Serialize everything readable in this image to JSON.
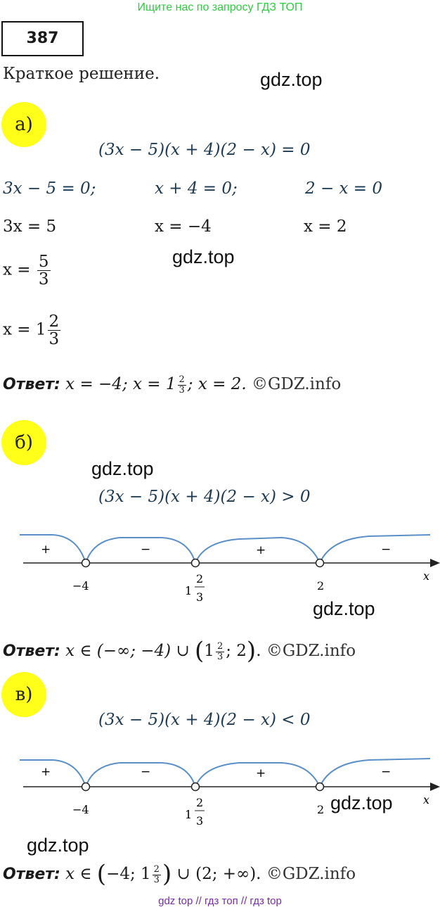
{
  "banner_top": "Ищите нас по запросу ГДЗ ТОП",
  "problem_number": "387",
  "subtitle": "Краткое решение.",
  "watermark": "gdz.top",
  "part_a": {
    "label": "а)",
    "equation": "(3x − 5)(x + 4)(2 − x) = 0",
    "col1": [
      "3x − 5 = 0;",
      "3x = 5"
    ],
    "col2": [
      "x + 4 = 0;",
      "x = −4"
    ],
    "col3": [
      "2 − x = 0",
      "x = 2"
    ],
    "x_prefix": "x =",
    "frac_5_3": {
      "num": "5",
      "den": "3"
    },
    "mixed_whole": "1",
    "mixed_frac": {
      "num": "2",
      "den": "3"
    },
    "answer_label": "Ответ:",
    "answer_p1": "x = −4",
    "answer_sep": ";",
    "answer_p2": "x = 1",
    "answer_p3": "x = 2.",
    "copyright": "©GDZ.info"
  },
  "part_b": {
    "label": "б)",
    "inequality": "(3x − 5)(x + 4)(2 − x) > 0",
    "answer_label": "Ответ:",
    "answer_p1": "x ∈ (−∞; −4) ∪",
    "answer_p2": "1",
    "answer_p3": "; 2",
    "answer_end": ".",
    "copyright": "©GDZ.info"
  },
  "part_c": {
    "label": "в)",
    "inequality": "(3x − 5)(x + 4)(2 − x) < 0",
    "answer_label": "Ответ:",
    "answer_p1": "x ∈",
    "answer_p2": "−4; 1",
    "answer_p3": "∪ (2; +∞).",
    "copyright": "©GDZ.info"
  },
  "number_line": {
    "axis_var": "x",
    "points": [
      "−4",
      "1 2/3",
      "2"
    ],
    "point_whole": "1",
    "point_frac": {
      "num": "2",
      "den": "3"
    },
    "signs": [
      "+",
      "−",
      "+",
      "−"
    ],
    "curve_color": "#5b8fc7"
  },
  "banner_bottom": "gdz top  //  гдз топ  //  гдз top"
}
